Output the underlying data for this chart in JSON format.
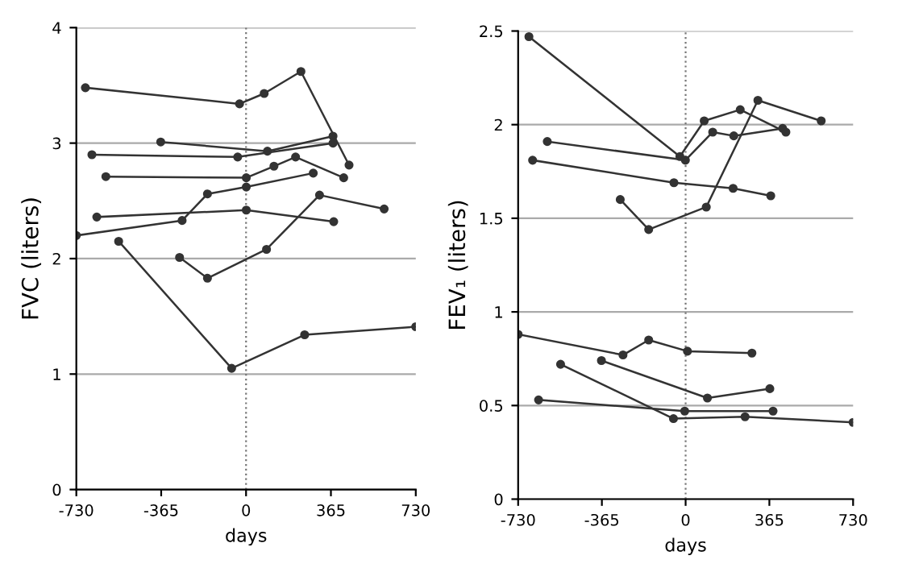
{
  "chart_data": [
    {
      "type": "line",
      "xlabel": "days",
      "ylabel": "FVC (liters)",
      "xlim": [
        -730,
        730
      ],
      "ylim": [
        0,
        4
      ],
      "xticks": [
        -730,
        -365,
        0,
        365,
        730
      ],
      "yticks": [
        0,
        1,
        2,
        3,
        4
      ],
      "grid": "y",
      "marker": "circle",
      "ref_lines": [
        {
          "axis": "x",
          "value": 0,
          "line_style": "dotted"
        }
      ],
      "series": [
        {
          "color": "#333333",
          "x": [
            -691,
            -28,
            78,
            236,
            443
          ],
          "values": [
            3.48,
            3.34,
            3.43,
            3.62,
            2.81
          ]
        },
        {
          "color": "#333333",
          "x": [
            -367,
            92,
            374
          ],
          "values": [
            3.01,
            2.93,
            3.06
          ]
        },
        {
          "color": "#333333",
          "x": [
            -663,
            -36,
            374
          ],
          "values": [
            2.9,
            2.88,
            3.0
          ]
        },
        {
          "color": "#333333",
          "x": [
            -603,
            1,
            120,
            213,
            420
          ],
          "values": [
            2.71,
            2.7,
            2.8,
            2.88,
            2.7
          ]
        },
        {
          "color": "#333333",
          "x": [
            -730,
            -275,
            -166,
            1,
            289
          ],
          "values": [
            2.2,
            2.33,
            2.56,
            2.62,
            2.74
          ]
        },
        {
          "color": "#333333",
          "x": [
            -642,
            1,
            377
          ],
          "values": [
            2.36,
            2.42,
            2.32
          ]
        },
        {
          "color": "#333333",
          "x": [
            -286,
            -166,
            88,
            316,
            594
          ],
          "values": [
            2.01,
            1.83,
            2.08,
            2.55,
            2.43
          ]
        },
        {
          "color": "#333333",
          "x": [
            -548,
            -62,
            252,
            730
          ],
          "values": [
            2.15,
            1.05,
            1.34,
            1.41
          ]
        }
      ]
    },
    {
      "type": "line",
      "xlabel": "days",
      "ylabel": "FEV₁ (liters)",
      "xlim": [
        -730,
        730
      ],
      "ylim": [
        0,
        2.5
      ],
      "xticks": [
        -730,
        -365,
        0,
        365,
        730
      ],
      "yticks": [
        0,
        0.5,
        1,
        1.5,
        2,
        2.5
      ],
      "grid": "y",
      "marker": "circle",
      "ref_lines": [
        {
          "axis": "x",
          "value": 0,
          "line_style": "dotted"
        }
      ],
      "series": [
        {
          "color": "#333333",
          "x": [
            -683,
            -25,
            81,
            238,
            437
          ],
          "values": [
            2.47,
            1.83,
            2.02,
            2.08,
            1.96
          ]
        },
        {
          "color": "#333333",
          "x": [
            -603,
            -1,
            118,
            210,
            423
          ],
          "values": [
            1.91,
            1.81,
            1.96,
            1.94,
            1.98
          ]
        },
        {
          "color": "#333333",
          "x": [
            -667,
            -51,
            207,
            371
          ],
          "values": [
            1.81,
            1.69,
            1.66,
            1.62
          ]
        },
        {
          "color": "#333333",
          "x": [
            -285,
            -161,
            90,
            315,
            591
          ],
          "values": [
            1.6,
            1.44,
            1.56,
            2.13,
            2.02
          ]
        },
        {
          "color": "#333333",
          "x": [
            -730,
            -273,
            -161,
            8,
            289
          ],
          "values": [
            0.88,
            0.77,
            0.85,
            0.79,
            0.78
          ]
        },
        {
          "color": "#333333",
          "x": [
            -367,
            95,
            367
          ],
          "values": [
            0.74,
            0.54,
            0.59
          ]
        },
        {
          "color": "#333333",
          "x": [
            -545,
            -53,
            259,
            730
          ],
          "values": [
            0.72,
            0.43,
            0.44,
            0.41
          ]
        },
        {
          "color": "#333333",
          "x": [
            -641,
            -4,
            381
          ],
          "values": [
            0.53,
            0.47,
            0.47
          ]
        }
      ]
    }
  ]
}
